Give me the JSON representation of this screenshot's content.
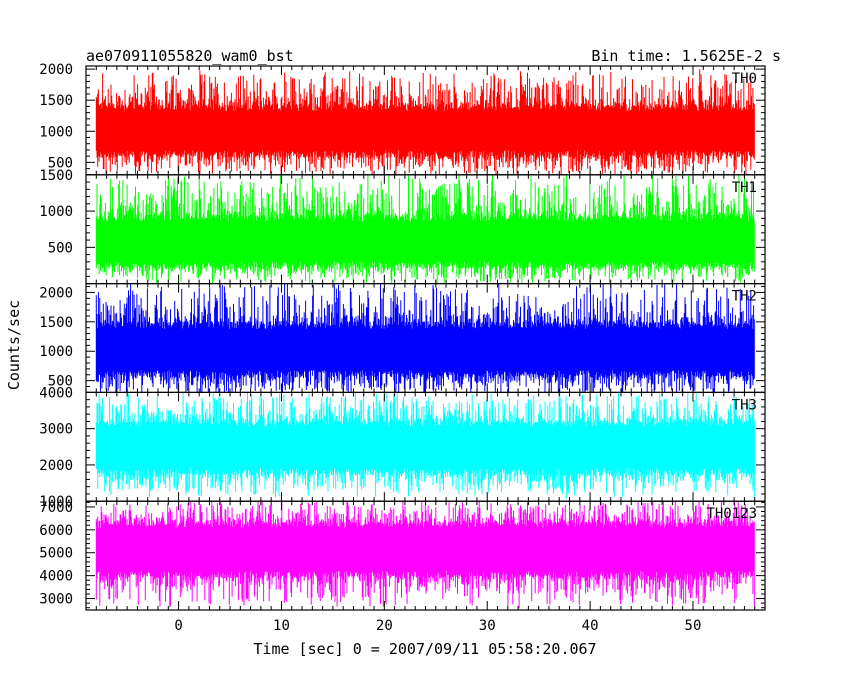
{
  "chart_data": {
    "type": "line",
    "title": "ae070911055820_wam0_bst",
    "bin_time_label": "Bin time: 1.5625E-2 s",
    "xlabel": "Time [sec] 0 = 2007/09/11 05:58:20.067",
    "ylabel": "Counts/sec",
    "xlim": [
      -9,
      57
    ],
    "x_data_range": [
      -8,
      56
    ],
    "x_ticks": [
      0,
      10,
      20,
      30,
      40,
      50
    ],
    "grid": false,
    "panels": [
      {
        "name": "TH0",
        "color": "#ff0000",
        "ylim": [
          300,
          2050
        ],
        "y_ticks": [
          500,
          1000,
          1500,
          2000
        ],
        "band_low": 300,
        "band_high": 1950,
        "typical_low": 640,
        "typical_high": 1380
      },
      {
        "name": "TH1",
        "color": "#00ff00",
        "ylim": [
          0,
          1500
        ],
        "y_ticks": [
          500,
          1000,
          1500
        ],
        "band_low": 30,
        "band_high": 1500,
        "typical_low": 260,
        "typical_high": 900
      },
      {
        "name": "TH2",
        "color": "#0000ff",
        "ylim": [
          300,
          2150
        ],
        "y_ticks": [
          500,
          1000,
          1500,
          2000
        ],
        "band_low": 260,
        "band_high": 2150,
        "typical_low": 620,
        "typical_high": 1440
      },
      {
        "name": "TH3",
        "color": "#00ffff",
        "ylim": [
          1000,
          4000
        ],
        "y_ticks": [
          1000,
          2000,
          3000,
          4000
        ],
        "band_low": 1150,
        "band_high": 4000,
        "typical_low": 1820,
        "typical_high": 3150
      },
      {
        "name": "TH0123",
        "color": "#ff00ff",
        "ylim": [
          2500,
          7250
        ],
        "y_ticks": [
          3000,
          4000,
          5000,
          6000,
          7000
        ],
        "band_low": 2650,
        "band_high": 7250,
        "typical_low": 4050,
        "typical_high": 6250
      }
    ]
  }
}
